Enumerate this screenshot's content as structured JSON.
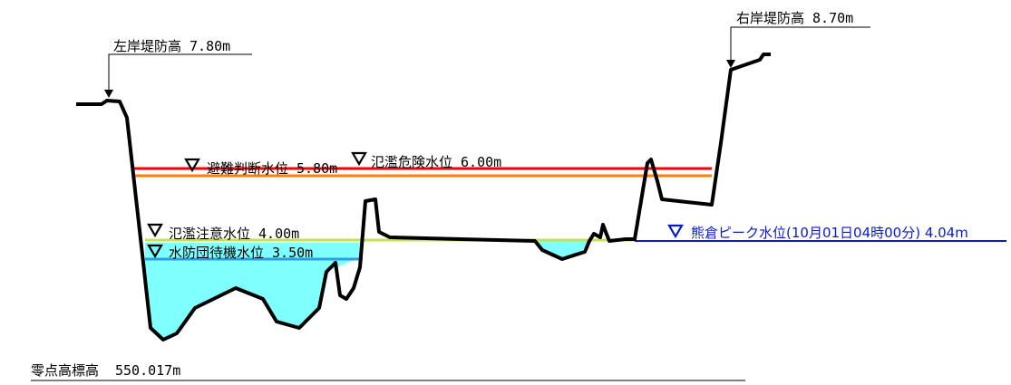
{
  "levels": {
    "evacuation": {
      "label": "避難判断水位 5.80m",
      "color": "#ff0000"
    },
    "flood_danger": {
      "label": "氾濫危険水位 6.00m",
      "color": "#ff7f00"
    },
    "flood_caution": {
      "label": "氾濫注意水位 4.00m",
      "color": "#c6e05a"
    },
    "standby": {
      "label": "水防団待機水位 3.50m",
      "color": "#2c9fe0"
    },
    "current": {
      "label": "熊倉ピーク水位(10月01日04時00分) 4.04m",
      "color": "#0a1cc8"
    }
  },
  "banks": {
    "left": {
      "label": "左岸堤防高 7.80m"
    },
    "right": {
      "label": "右岸堤防高 8.70m"
    }
  },
  "datum": {
    "label": "零点高標高",
    "value": "550.017m"
  },
  "colors": {
    "water": "#80ffff",
    "ground": "#000000",
    "triangle_marker": "#000000"
  },
  "icons": [
    "triangle-marker-icon",
    "down-arrow-icon"
  ]
}
